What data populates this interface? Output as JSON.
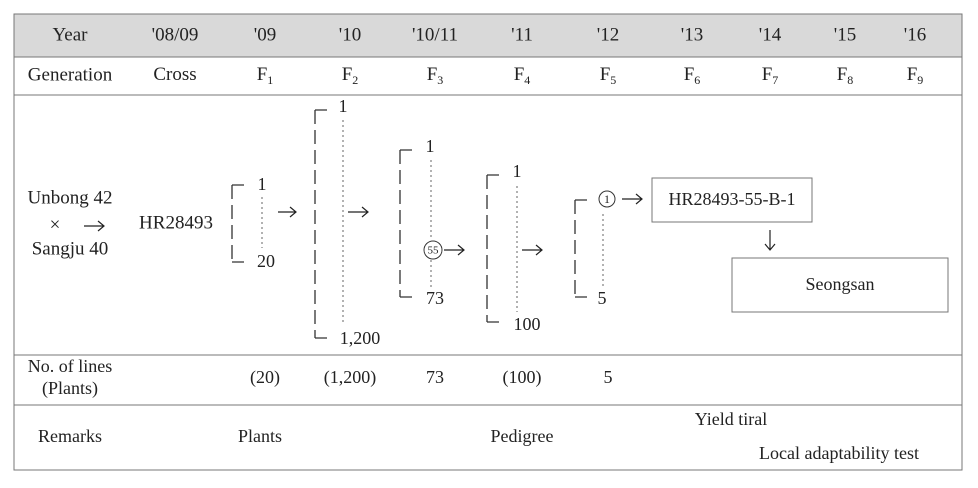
{
  "header": {
    "label": "Year",
    "years": [
      "'08/09",
      "'09",
      "'10",
      "'10/11",
      "'11",
      "'12",
      "'13",
      "'14",
      "'15",
      "'16"
    ]
  },
  "generation": {
    "label": "Generation",
    "values": [
      {
        "text": "Cross"
      },
      {
        "text": "F",
        "sub": "1"
      },
      {
        "text": "F",
        "sub": "2"
      },
      {
        "text": "F",
        "sub": "3"
      },
      {
        "text": "F",
        "sub": "4"
      },
      {
        "text": "F",
        "sub": "5"
      },
      {
        "text": "F",
        "sub": "6"
      },
      {
        "text": "F",
        "sub": "7"
      },
      {
        "text": "F",
        "sub": "8"
      },
      {
        "text": "F",
        "sub": "9"
      }
    ]
  },
  "diagram": {
    "parent1": "Unbong 42",
    "cross": "×",
    "parent2": "Sangju 40",
    "cross_name": "HR28493",
    "brackets": [
      {
        "top": "1",
        "bottom": "20"
      },
      {
        "top": "1",
        "bottom": "1,200"
      },
      {
        "top": "1",
        "selected": "55",
        "bottom": "73"
      },
      {
        "top": "1",
        "bottom": "100"
      },
      {
        "selected": "1",
        "bottom": "5"
      }
    ],
    "line_name": "HR28493-55-B-1",
    "variety": "Seongsan"
  },
  "lines_row": {
    "label": [
      "No. of lines",
      "(Plants)"
    ],
    "values": [
      "(20)",
      "(1,200)",
      "73",
      "(100)",
      "5"
    ]
  },
  "remarks": {
    "label": "Remarks",
    "plants": "Plants",
    "pedigree": "Pedigree",
    "yield": "Yield tiral",
    "local": "Local adaptability test"
  }
}
